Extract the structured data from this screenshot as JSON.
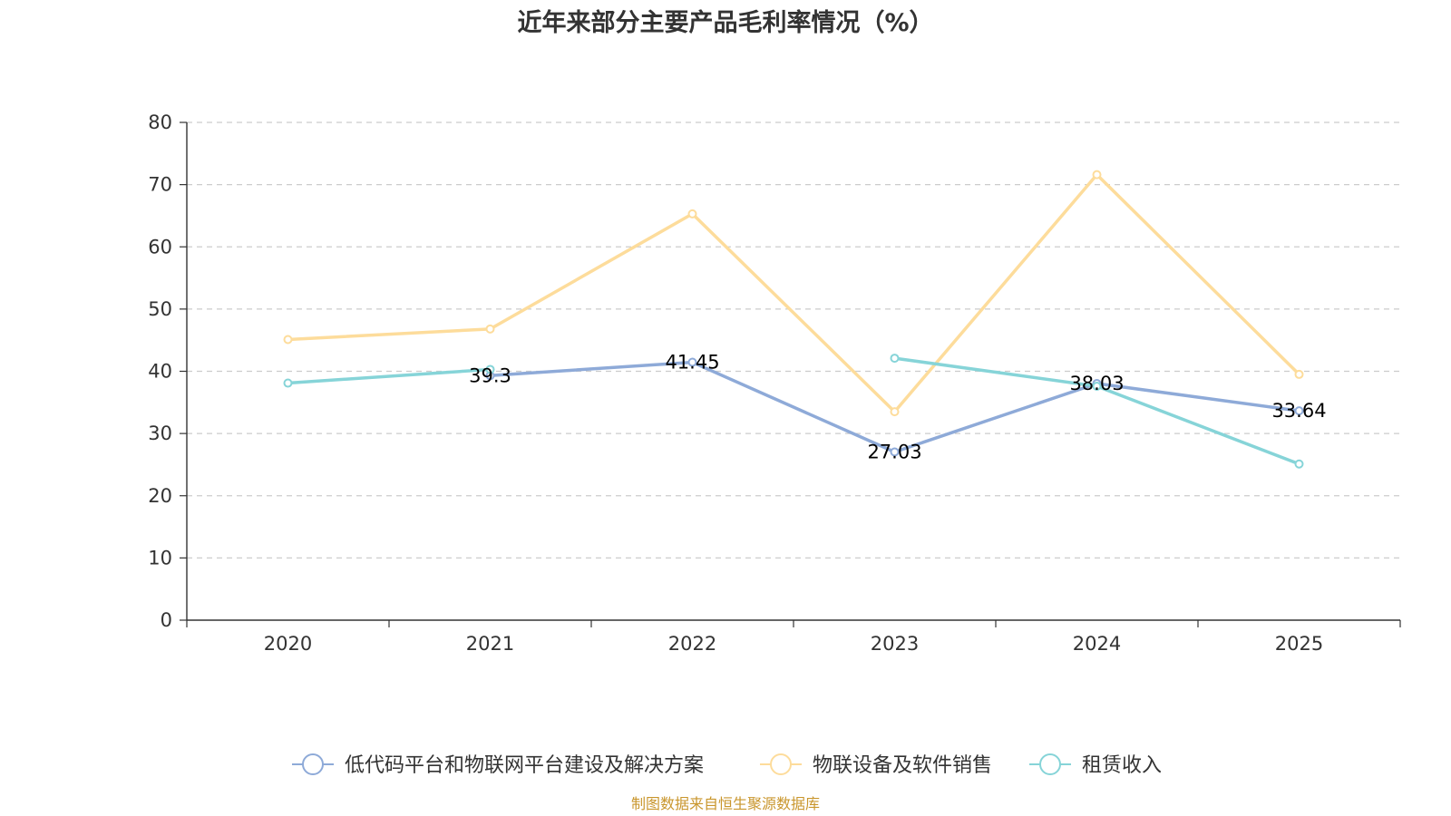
{
  "chart_data": {
    "type": "line",
    "title": "近年来部分主要产品毛利率情况（%）",
    "categories": [
      "2020",
      "2021",
      "2022",
      "2023",
      "2024",
      "2025"
    ],
    "ylim": [
      0,
      80
    ],
    "yticks": [
      0,
      10,
      20,
      30,
      40,
      50,
      60,
      70,
      80
    ],
    "grid": "dashed-horizontal",
    "legend_position": "bottom",
    "series": [
      {
        "name": "低代码平台和物联网平台建设及解决方案",
        "color": "#8eaad8",
        "values": [
          null,
          39.3,
          41.45,
          27.03,
          38.03,
          33.64
        ],
        "labels": [
          null,
          "39.3",
          "41.45",
          "27.03",
          "38.03",
          "33.64"
        ]
      },
      {
        "name": "物联设备及软件销售",
        "color": "#fddc9b",
        "values": [
          45.1,
          46.8,
          65.3,
          33.5,
          71.6,
          39.5
        ],
        "labels": [
          null,
          null,
          null,
          null,
          null,
          null
        ]
      },
      {
        "name": "租赁收入",
        "color": "#86d4d8",
        "values": [
          38.1,
          40.3,
          null,
          42.1,
          37.6,
          25.1
        ],
        "labels": [
          null,
          null,
          null,
          null,
          null,
          null
        ]
      }
    ],
    "source": "制图数据来自恒生聚源数据库"
  }
}
